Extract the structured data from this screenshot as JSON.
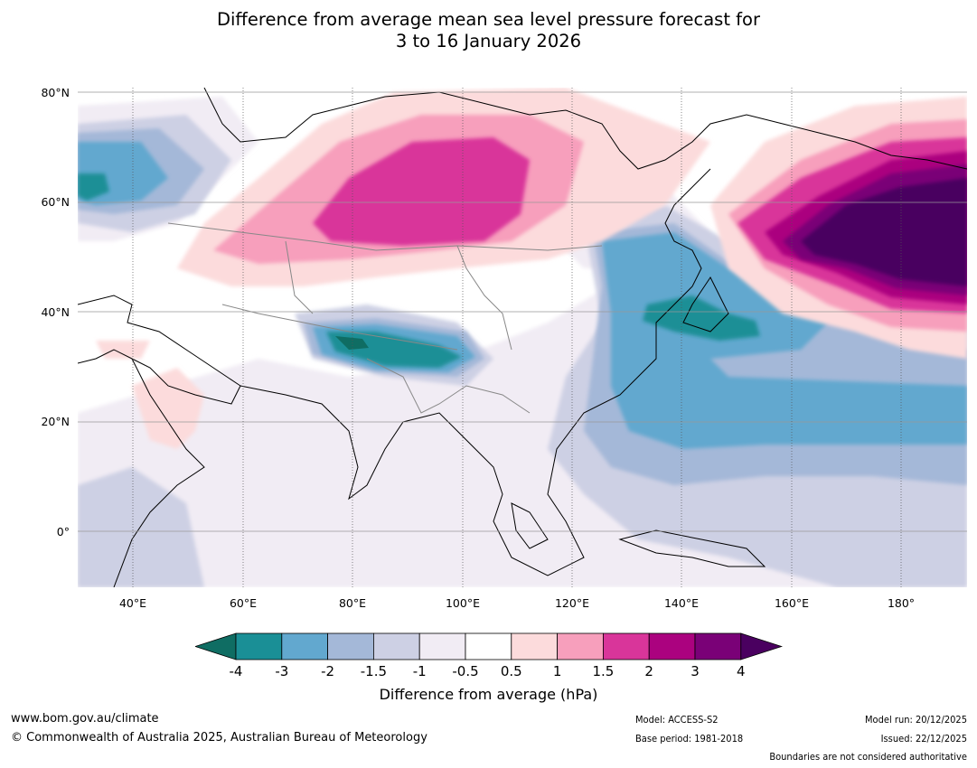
{
  "title": {
    "line1": "Difference from average mean sea level pressure forecast for",
    "line2": "3 to 16 January 2026"
  },
  "map": {
    "lat_labels": [
      "80°N",
      "60°N",
      "40°N",
      "20°N",
      "0°"
    ],
    "lon_labels": [
      "40°E",
      "60°E",
      "80°E",
      "100°E",
      "120°E",
      "140°E",
      "160°E",
      "180°"
    ],
    "lat_range": [
      -10,
      80
    ],
    "lon_range": [
      30,
      192
    ]
  },
  "legend": {
    "ticks": [
      "-4",
      "-3",
      "-2",
      "-1.5",
      "-1",
      "-0.5",
      "0.5",
      "1",
      "1.5",
      "2",
      "3",
      "4"
    ],
    "colors": [
      "#0f6d63",
      "#1a8f96",
      "#62a8cf",
      "#a4b8d8",
      "#cdd0e4",
      "#f1ecf4",
      "#ffffff",
      "#fcdbdc",
      "#f79fbc",
      "#d9359a",
      "#ab027f",
      "#7a0177",
      "#4a0060"
    ],
    "label": "Difference from average (hPa)"
  },
  "footer": {
    "website": "www.bom.gov.au/climate",
    "copyright": "© Commonwealth of Australia 2025, Australian Bureau of Meteorology",
    "model": "Model: ACCESS-S2",
    "base_period": "Base period: 1981-2018",
    "model_run": "Model run: 20/12/2025",
    "issued": "Issued: 22/12/2025",
    "disclaimer": "Boundaries are not considered authoritative"
  }
}
